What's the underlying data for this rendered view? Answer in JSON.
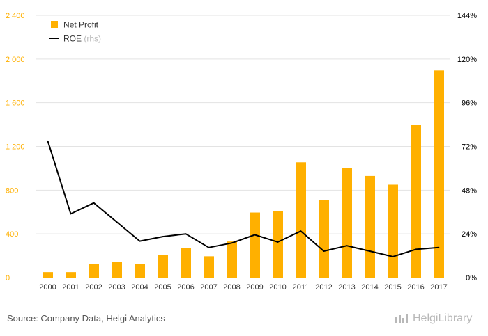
{
  "chart_data": {
    "type": "bar+line",
    "categories": [
      "2000",
      "2001",
      "2002",
      "2003",
      "2004",
      "2005",
      "2006",
      "2007",
      "2008",
      "2009",
      "2010",
      "2011",
      "2012",
      "2013",
      "2014",
      "2015",
      "2016",
      "2017"
    ],
    "series": [
      {
        "name": "Net Profit",
        "type": "bar",
        "axis": "left",
        "color": "#ffb000",
        "values": [
          50,
          50,
          125,
          140,
          125,
          210,
          270,
          195,
          330,
          595,
          605,
          1055,
          710,
          1000,
          930,
          850,
          1395,
          1895
        ]
      },
      {
        "name": "ROE",
        "legend_suffix": "(rhs)",
        "type": "line",
        "axis": "right",
        "color": "#000000",
        "values": [
          75,
          35,
          41,
          30.5,
          20,
          22.5,
          24,
          16.5,
          19,
          23.5,
          19.5,
          25.5,
          14.5,
          17.5,
          14.5,
          11.5,
          15.5,
          16.5
        ]
      }
    ],
    "left_axis": {
      "ticks": [
        0,
        400,
        800,
        1200,
        1600,
        2000,
        2400
      ],
      "tick_labels": [
        "0",
        "400",
        "800",
        "1 200",
        "1 600",
        "2 000",
        "2 400"
      ],
      "ylim": [
        0,
        2400
      ]
    },
    "right_axis": {
      "ticks": [
        0,
        24,
        48,
        72,
        96,
        120,
        144
      ],
      "tick_labels": [
        "0%",
        "24%",
        "48%",
        "72%",
        "96%",
        "120%",
        "144%"
      ],
      "ylim": [
        0,
        144
      ]
    },
    "legend_placement": "top-left",
    "grid": "horizontal"
  },
  "footer": {
    "source": "Source: Company Data, Helgi Analytics",
    "logo": "HelgiLibrary"
  }
}
